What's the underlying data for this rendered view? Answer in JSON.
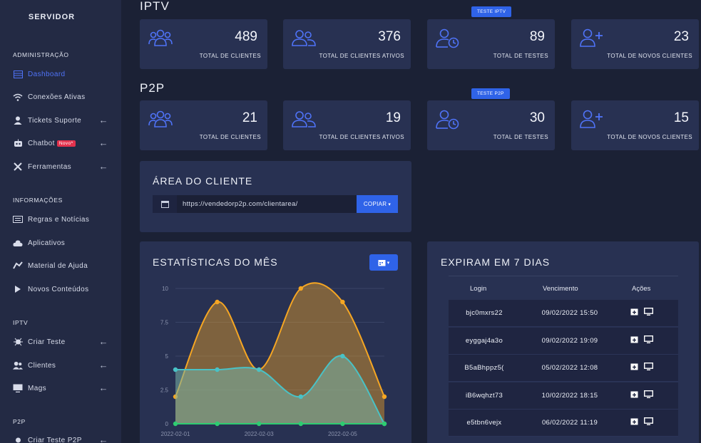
{
  "sidebar": {
    "brand": "SERVIDOR",
    "sections": {
      "admin": "ADMINISTRAÇÃO",
      "info": "INFORMAÇÕES",
      "iptv": "IPTV",
      "p2p": "P2P"
    },
    "items": {
      "dashboard": "Dashboard",
      "conexoes": "Conexões Ativas",
      "tickets": "Tickets Suporte",
      "chatbot": "Chatbot",
      "chatbot_badge": "Novo*",
      "ferramentas": "Ferramentas",
      "regras": "Regras e Notícias",
      "aplicativos": "Aplicativos",
      "material": "Material de Ajuda",
      "novos": "Novos Conteúdos",
      "criar_teste": "Criar Teste",
      "clientes": "Clientes",
      "mags": "Mags",
      "criar_teste_p2p": "Criar Teste P2P"
    },
    "arrow": "←"
  },
  "iptv": {
    "title": "IPTV",
    "tag": "TESTE IPTV",
    "cards": [
      {
        "value": "489",
        "label": "TOTAL DE CLIENTES",
        "icon": "users-icon"
      },
      {
        "value": "376",
        "label": "TOTAL DE CLIENTES ATIVOS",
        "icon": "user-group-icon"
      },
      {
        "value": "89",
        "label": "TOTAL DE TESTES",
        "icon": "user-clock-icon"
      },
      {
        "value": "23",
        "label": "TOTAL DE NOVOS CLIENTES",
        "icon": "user-plus-icon"
      }
    ]
  },
  "p2p": {
    "title": "P2P",
    "tag": "TESTE P2P",
    "cards": [
      {
        "value": "21",
        "label": "TOTAL DE CLIENTES",
        "icon": "users-icon"
      },
      {
        "value": "19",
        "label": "TOTAL DE CLIENTES ATIVOS",
        "icon": "user-group-icon"
      },
      {
        "value": "30",
        "label": "TOTAL DE TESTES",
        "icon": "user-clock-icon"
      },
      {
        "value": "15",
        "label": "TOTAL DE NOVOS CLIENTES",
        "icon": "user-plus-icon"
      }
    ]
  },
  "area_cliente": {
    "title": "ÁREA DO CLIENTE",
    "url": "https://vendedorp2p.com/clientarea/",
    "copy_label": "COPIAR"
  },
  "stats": {
    "title": "ESTATÍSTICAS DO MÊS"
  },
  "expiram": {
    "title": "EXPIRAM EM 7 DIAS",
    "headers": {
      "login": "Login",
      "venc": "Vencimento",
      "acoes": "Ações"
    },
    "rows": [
      {
        "login": "bjc0mxrs22",
        "venc": "09/02/2022 15:50"
      },
      {
        "login": "eyggaj4a3o",
        "venc": "09/02/2022 19:09"
      },
      {
        "login": "B5aBhppz5(",
        "venc": "05/02/2022 12:08"
      },
      {
        "login": "iB6wqhzt73",
        "venc": "10/02/2022 18:15"
      },
      {
        "login": "e5tbn6vejx",
        "venc": "06/02/2022 11:19"
      }
    ]
  },
  "colors": {
    "accent": "#2f63e8",
    "orange": "#f5a623",
    "teal": "#49c2c6",
    "green": "#2ecc71",
    "badge": "#e3324d"
  },
  "chart_data": {
    "type": "area",
    "x": [
      "2022-02-01",
      "2022-02-02",
      "2022-02-03",
      "2022-02-04",
      "2022-02-05",
      "2022-02-06"
    ],
    "xticks": [
      "2022-02-01",
      "2022-02-03",
      "2022-02-05"
    ],
    "yticks": [
      "0",
      "2.5",
      "5",
      "7.5",
      "10"
    ],
    "ylim": [
      0,
      10
    ],
    "series": [
      {
        "values": [
          2,
          9,
          4,
          10,
          9,
          2
        ],
        "color": "#f5a623"
      },
      {
        "values": [
          4,
          4,
          4,
          2,
          5,
          0
        ],
        "color": "#49c2c6"
      },
      {
        "values": [
          0,
          0,
          0,
          0,
          0,
          0
        ],
        "color": "#2ecc71"
      }
    ],
    "grid": true
  }
}
